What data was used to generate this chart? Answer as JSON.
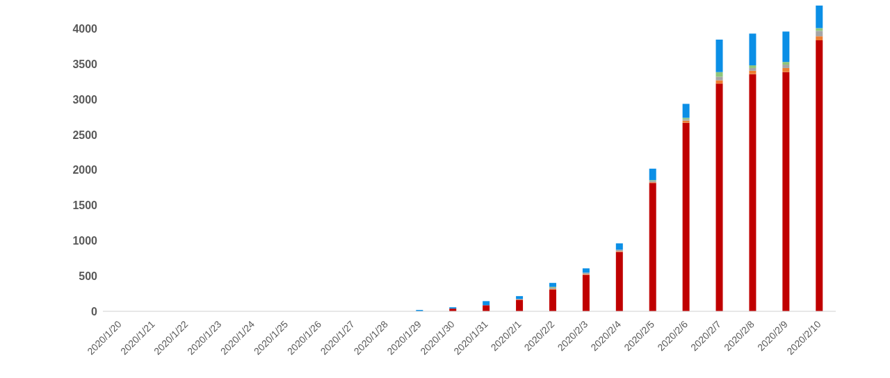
{
  "chart_data": {
    "type": "bar",
    "stacked": true,
    "categories": [
      "2020/1/20",
      "2020/1/21",
      "2020/1/22",
      "2020/1/23",
      "2020/1/24",
      "2020/1/25",
      "2020/1/26",
      "2020/1/27",
      "2020/1/28",
      "2020/1/29",
      "2020/1/30",
      "2020/1/31",
      "2020/2/1",
      "2020/2/2",
      "2020/2/3",
      "2020/2/4",
      "2020/2/5",
      "2020/2/6",
      "2020/2/7",
      "2020/2/8",
      "2020/2/9",
      "2020/2/10"
    ],
    "series": [
      {
        "color": "#c00000",
        "values": [
          0,
          0,
          0,
          0,
          0,
          0,
          0,
          0,
          0,
          0,
          38,
          86,
          163,
          306,
          517,
          842,
          1818,
          2670,
          3225,
          3359,
          3388,
          3838
        ]
      },
      {
        "color": "#ed7d31",
        "values": [
          0,
          0,
          0,
          0,
          0,
          0,
          0,
          0,
          0,
          0,
          0,
          0,
          5,
          10,
          10,
          10,
          10,
          30,
          48,
          48,
          57,
          57
        ]
      },
      {
        "color": "#a5a5a5",
        "values": [
          0,
          0,
          0,
          0,
          0,
          0,
          0,
          0,
          0,
          0,
          0,
          0,
          5,
          20,
          20,
          20,
          20,
          20,
          48,
          38,
          48,
          77
        ]
      },
      {
        "color": "#8fc47a",
        "values": [
          0,
          0,
          0,
          0,
          0,
          0,
          0,
          0,
          0,
          0,
          0,
          0,
          0,
          10,
          0,
          0,
          10,
          20,
          67,
          38,
          38,
          38
        ]
      },
      {
        "color": "#0b8fe6",
        "values": [
          0,
          0,
          0,
          0,
          0,
          0,
          0,
          0,
          0,
          19,
          19,
          58,
          42,
          56,
          61,
          90,
          162,
          198,
          459,
          450,
          431,
          320
        ]
      }
    ],
    "ylim": [
      0,
      4330
    ],
    "yticks": [
      0,
      500,
      1000,
      1500,
      2000,
      2500,
      3000,
      3500,
      4000
    ],
    "grid": false,
    "legend": false
  }
}
